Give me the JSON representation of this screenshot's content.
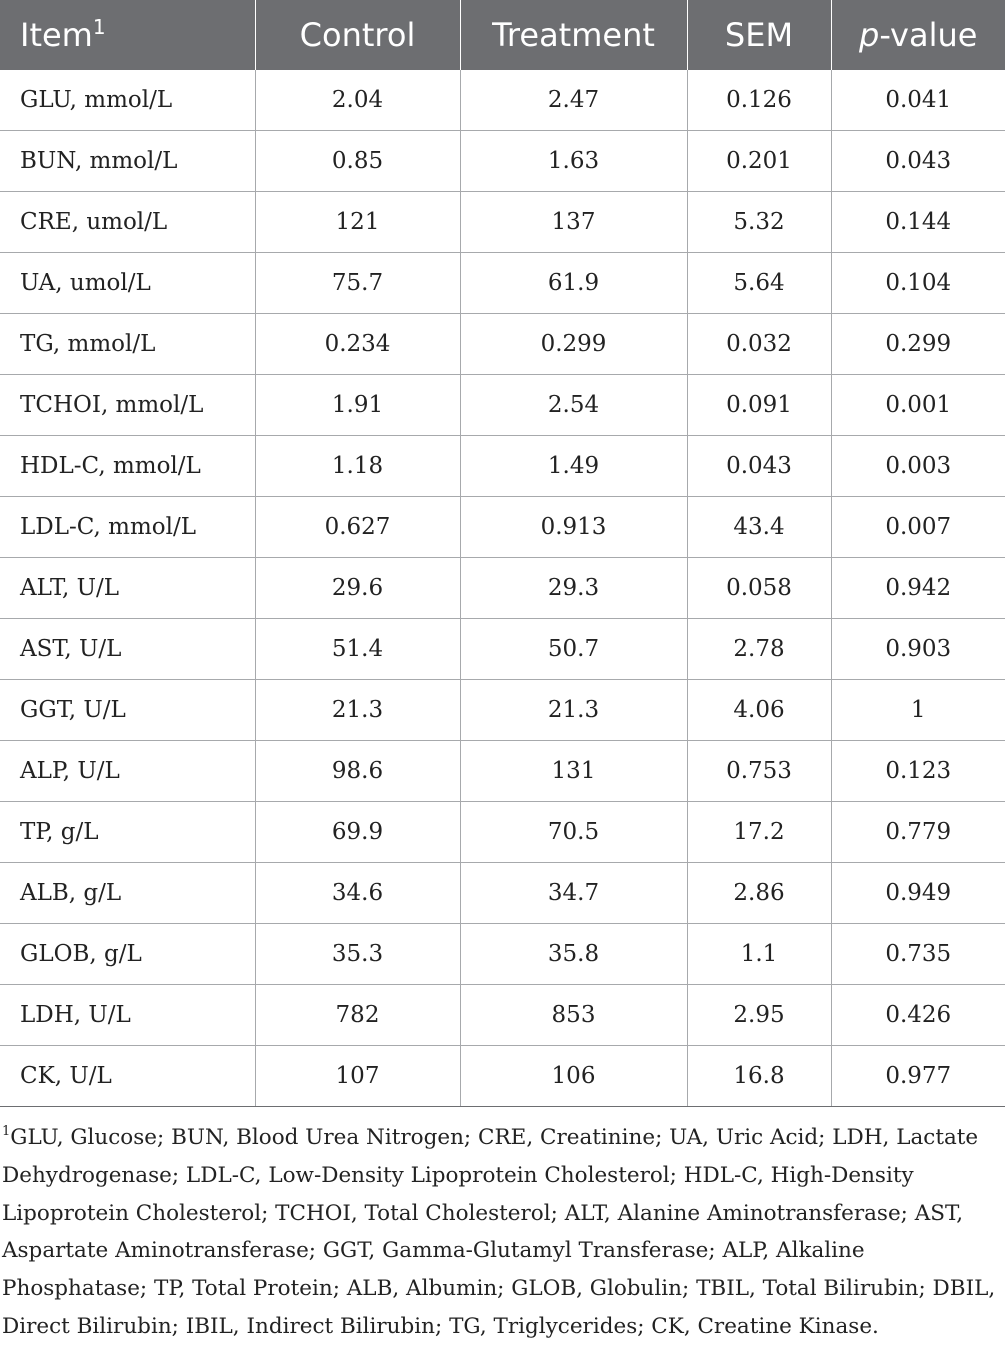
{
  "table": {
    "headers": {
      "item": "Item",
      "item_sup": "1",
      "control": "Control",
      "treatment": "Treatment",
      "sem": "SEM",
      "pvalue_italic": "p",
      "pvalue_rest": "-value"
    },
    "rows": [
      {
        "item": "GLU, mmol/L",
        "control": "2.04",
        "treatment": "2.47",
        "sem": "0.126",
        "p": "0.041"
      },
      {
        "item": "BUN, mmol/L",
        "control": "0.85",
        "treatment": "1.63",
        "sem": "0.201",
        "p": "0.043"
      },
      {
        "item": "CRE, umol/L",
        "control": "121",
        "treatment": "137",
        "sem": "5.32",
        "p": "0.144"
      },
      {
        "item": "UA, umol/L",
        "control": "75.7",
        "treatment": "61.9",
        "sem": "5.64",
        "p": "0.104"
      },
      {
        "item": "TG, mmol/L",
        "control": "0.234",
        "treatment": "0.299",
        "sem": "0.032",
        "p": "0.299"
      },
      {
        "item": "TCHOI, mmol/L",
        "control": "1.91",
        "treatment": "2.54",
        "sem": "0.091",
        "p": "0.001"
      },
      {
        "item": "HDL-C, mmol/L",
        "control": "1.18",
        "treatment": "1.49",
        "sem": "0.043",
        "p": "0.003"
      },
      {
        "item": "LDL-C, mmol/L",
        "control": "0.627",
        "treatment": "0.913",
        "sem": "43.4",
        "p": "0.007"
      },
      {
        "item": "ALT, U/L",
        "control": "29.6",
        "treatment": "29.3",
        "sem": "0.058",
        "p": "0.942"
      },
      {
        "item": "AST, U/L",
        "control": "51.4",
        "treatment": "50.7",
        "sem": "2.78",
        "p": "0.903"
      },
      {
        "item": "GGT, U/L",
        "control": "21.3",
        "treatment": "21.3",
        "sem": "4.06",
        "p": "1"
      },
      {
        "item": "ALP, U/L",
        "control": "98.6",
        "treatment": "131",
        "sem": "0.753",
        "p": "0.123"
      },
      {
        "item": "TP, g/L",
        "control": "69.9",
        "treatment": "70.5",
        "sem": "17.2",
        "p": "0.779"
      },
      {
        "item": "ALB, g/L",
        "control": "34.6",
        "treatment": "34.7",
        "sem": "2.86",
        "p": "0.949"
      },
      {
        "item": "GLOB, g/L",
        "control": "35.3",
        "treatment": "35.8",
        "sem": "1.1",
        "p": "0.735"
      },
      {
        "item": "LDH, U/L",
        "control": "782",
        "treatment": "853",
        "sem": "2.95",
        "p": "0.426"
      },
      {
        "item": "CK, U/L",
        "control": "107",
        "treatment": "106",
        "sem": "16.8",
        "p": "0.977"
      }
    ]
  },
  "footnote": {
    "marker": "1",
    "text": "GLU, Glucose; BUN, Blood Urea Nitrogen; CRE, Creatinine; UA, Uric Acid; LDH, Lactate Dehydrogenase; LDL-C, Low-Density Lipoprotein Cholesterol; HDL-C, High-Density Lipoprotein Cholesterol; TCHOI, Total Cholesterol; ALT, Alanine Aminotransferase; AST, Aspartate Aminotransferase; GGT, Gamma-Glutamyl Transferase; ALP, Alkaline Phosphatase; TP, Total Protein; ALB, Albumin; GLOB, Globulin; TBIL, Total Bilirubin; DBIL, Direct Bilirubin; IBIL, Indirect Bilirubin; TG, Triglycerides; CK, Creatine Kinase."
  }
}
